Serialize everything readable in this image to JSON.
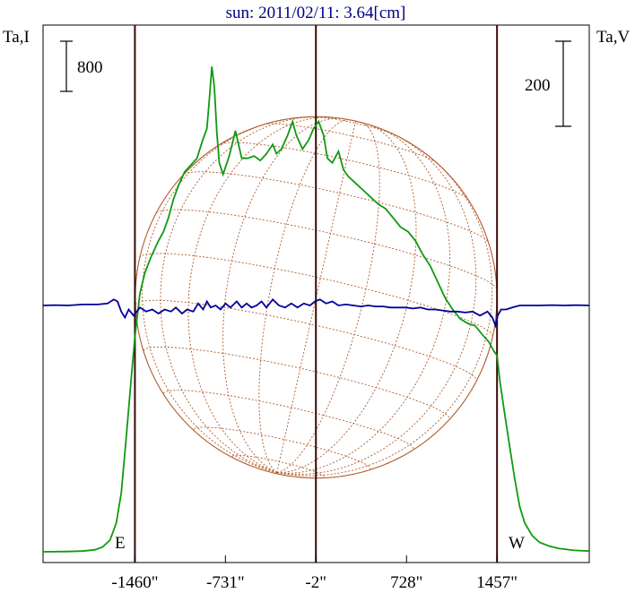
{
  "chart_data": {
    "type": "line",
    "title": "sun: 2011/02/11: 3.64[cm]",
    "ylabel_left": "Ta,I",
    "ylabel_right": "Ta,V",
    "scale_left": "800",
    "scale_right": "200",
    "marker_east": "E",
    "marker_west": "W",
    "xlim": [
      -2200,
      2200
    ],
    "x_ticks": [
      {
        "value": -1460,
        "label": "-1460\""
      },
      {
        "value": -731,
        "label": "-731\""
      },
      {
        "value": -2,
        "label": "-2\""
      },
      {
        "value": 728,
        "label": "728\""
      },
      {
        "value": 1457,
        "label": "1457\""
      }
    ],
    "vlines": [
      -1460,
      -2,
      1457
    ],
    "disk_radius_arcsec": 1457,
    "colors": {
      "intensity": "#119911",
      "polarization": "#000099",
      "disk": "#b05a2a",
      "vlines": "#3a0a0a",
      "title": "#000080"
    },
    "series": [
      {
        "name": "Ta,I",
        "values": [
          [
            -2200,
            0.04
          ],
          [
            -2000,
            0.05
          ],
          [
            -1880,
            0.07
          ],
          [
            -1780,
            0.13
          ],
          [
            -1720,
            0.25
          ],
          [
            -1660,
            0.55
          ],
          [
            -1610,
            1.3
          ],
          [
            -1570,
            2.6
          ],
          [
            -1530,
            5.0
          ],
          [
            -1490,
            7.6
          ],
          [
            -1460,
            9.4
          ],
          [
            -1420,
            11.3
          ],
          [
            -1380,
            12.2
          ],
          [
            -1330,
            12.9
          ],
          [
            -1270,
            13.6
          ],
          [
            -1230,
            14.0
          ],
          [
            -1190,
            14.6
          ],
          [
            -1150,
            15.4
          ],
          [
            -1110,
            16.0
          ],
          [
            -1060,
            16.6
          ],
          [
            -1010,
            16.9
          ],
          [
            -960,
            17.2
          ],
          [
            -920,
            17.9
          ],
          [
            -880,
            18.5
          ],
          [
            -860,
            19.8
          ],
          [
            -840,
            21.2
          ],
          [
            -820,
            20.3
          ],
          [
            -800,
            18.3
          ],
          [
            -780,
            17.0
          ],
          [
            -750,
            16.5
          ],
          [
            -700,
            17.3
          ],
          [
            -650,
            18.4
          ],
          [
            -600,
            17.2
          ],
          [
            -550,
            17.2
          ],
          [
            -500,
            17.3
          ],
          [
            -450,
            17.1
          ],
          [
            -400,
            17.4
          ],
          [
            -350,
            17.8
          ],
          [
            -320,
            17.4
          ],
          [
            -280,
            17.6
          ],
          [
            -230,
            18.2
          ],
          [
            -190,
            18.8
          ],
          [
            -160,
            18.2
          ],
          [
            -110,
            17.6
          ],
          [
            -60,
            18.0
          ],
          [
            -20,
            18.5
          ],
          [
            20,
            18.8
          ],
          [
            60,
            18.2
          ],
          [
            90,
            17.2
          ],
          [
            130,
            17.0
          ],
          [
            180,
            17.5
          ],
          [
            220,
            16.7
          ],
          [
            260,
            16.4
          ],
          [
            320,
            16.1
          ],
          [
            380,
            15.8
          ],
          [
            440,
            15.5
          ],
          [
            500,
            15.2
          ],
          [
            560,
            15.0
          ],
          [
            620,
            14.6
          ],
          [
            680,
            14.2
          ],
          [
            740,
            14.0
          ],
          [
            800,
            13.6
          ],
          [
            860,
            13.0
          ],
          [
            920,
            12.5
          ],
          [
            980,
            11.8
          ],
          [
            1040,
            11.1
          ],
          [
            1100,
            10.6
          ],
          [
            1160,
            10.2
          ],
          [
            1220,
            10.0
          ],
          [
            1280,
            9.9
          ],
          [
            1340,
            9.5
          ],
          [
            1390,
            9.2
          ],
          [
            1430,
            8.8
          ],
          [
            1457,
            8.6
          ],
          [
            1480,
            7.5
          ],
          [
            1520,
            6.0
          ],
          [
            1560,
            4.6
          ],
          [
            1600,
            3.2
          ],
          [
            1640,
            2.0
          ],
          [
            1680,
            1.3
          ],
          [
            1740,
            0.75
          ],
          [
            1800,
            0.45
          ],
          [
            1880,
            0.28
          ],
          [
            1960,
            0.18
          ],
          [
            2080,
            0.1
          ],
          [
            2200,
            0.07
          ]
        ]
      },
      {
        "name": "Ta,V",
        "values": [
          [
            -2200,
            0.0
          ],
          [
            -2100,
            0.02
          ],
          [
            -2000,
            0.0
          ],
          [
            -1880,
            0.05
          ],
          [
            -1760,
            0.05
          ],
          [
            -1680,
            0.1
          ],
          [
            -1630,
            0.3
          ],
          [
            -1600,
            0.2
          ],
          [
            -1570,
            -0.3
          ],
          [
            -1540,
            -0.6
          ],
          [
            -1510,
            -0.2
          ],
          [
            -1470,
            -0.5
          ],
          [
            -1420,
            -0.1
          ],
          [
            -1370,
            -0.3
          ],
          [
            -1320,
            -0.2
          ],
          [
            -1270,
            -0.4
          ],
          [
            -1220,
            -0.2
          ],
          [
            -1170,
            -0.3
          ],
          [
            -1130,
            -0.1
          ],
          [
            -1080,
            -0.4
          ],
          [
            -1040,
            -0.2
          ],
          [
            -990,
            -0.3
          ],
          [
            -950,
            0.1
          ],
          [
            -910,
            -0.2
          ],
          [
            -880,
            0.2
          ],
          [
            -850,
            -0.1
          ],
          [
            -810,
            0.0
          ],
          [
            -770,
            -0.2
          ],
          [
            -730,
            0.1
          ],
          [
            -690,
            -0.1
          ],
          [
            -640,
            0.2
          ],
          [
            -600,
            -0.1
          ],
          [
            -560,
            0.1
          ],
          [
            -520,
            -0.1
          ],
          [
            -480,
            0.0
          ],
          [
            -440,
            0.2
          ],
          [
            -400,
            -0.1
          ],
          [
            -350,
            0.3
          ],
          [
            -300,
            0.0
          ],
          [
            -250,
            -0.1
          ],
          [
            -200,
            0.1
          ],
          [
            -150,
            -0.1
          ],
          [
            -100,
            0.1
          ],
          [
            -50,
            0.0
          ],
          [
            -10,
            0.2
          ],
          [
            30,
            0.3
          ],
          [
            80,
            0.1
          ],
          [
            130,
            0.2
          ],
          [
            180,
            0.0
          ],
          [
            240,
            0.05
          ],
          [
            300,
            0.0
          ],
          [
            360,
            -0.05
          ],
          [
            420,
            0.0
          ],
          [
            480,
            -0.05
          ],
          [
            540,
            -0.05
          ],
          [
            600,
            -0.1
          ],
          [
            660,
            -0.1
          ],
          [
            720,
            -0.1
          ],
          [
            780,
            -0.15
          ],
          [
            840,
            -0.1
          ],
          [
            900,
            -0.2
          ],
          [
            960,
            -0.2
          ],
          [
            1020,
            -0.25
          ],
          [
            1080,
            -0.3
          ],
          [
            1140,
            -0.3
          ],
          [
            1200,
            -0.35
          ],
          [
            1260,
            -0.3
          ],
          [
            1320,
            -0.5
          ],
          [
            1380,
            -0.3
          ],
          [
            1420,
            -0.6
          ],
          [
            1445,
            -1.0
          ],
          [
            1462,
            -0.5
          ],
          [
            1490,
            -0.2
          ],
          [
            1530,
            -0.2
          ],
          [
            1580,
            -0.1
          ],
          [
            1640,
            0.0
          ],
          [
            1700,
            0.0
          ],
          [
            1800,
            0.0
          ],
          [
            1900,
            0.02
          ],
          [
            2000,
            0.0
          ],
          [
            2100,
            0.02
          ],
          [
            2200,
            0.0
          ]
        ]
      }
    ]
  }
}
